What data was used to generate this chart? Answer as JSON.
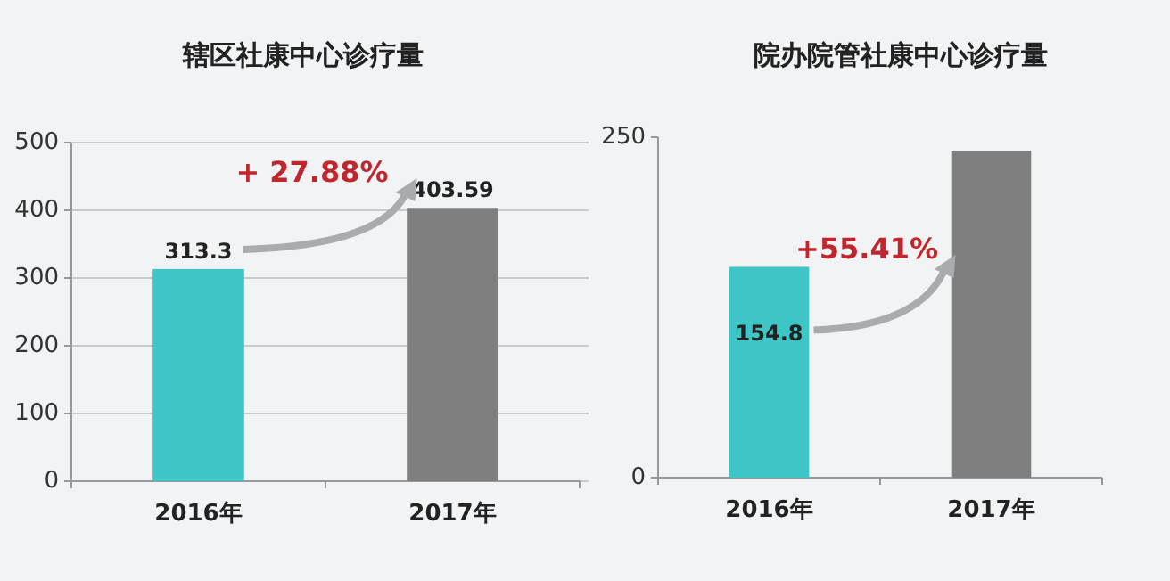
{
  "chart_data": [
    {
      "type": "bar",
      "title": "辖区社康中心诊疗量",
      "categories": [
        "2016年",
        "2017年"
      ],
      "values": [
        313.3,
        403.59
      ],
      "colors": [
        "#3ec6c6",
        "#7f7f7f"
      ],
      "ylim": [
        0,
        500
      ],
      "yticks": [
        0,
        100,
        200,
        300,
        400,
        500
      ],
      "grid": "y",
      "data_labels": true,
      "annotations": [
        "+ 27.88%"
      ]
    },
    {
      "type": "bar",
      "title": "院办院管社康中心诊疗量",
      "categories": [
        "2016年",
        "2017年"
      ],
      "values": [
        154.8,
        240
      ],
      "colors": [
        "#3ec6c6",
        "#7f7f7f"
      ],
      "ylim": [
        0,
        250
      ],
      "yticks": [
        0,
        250
      ],
      "value_labels": [
        "154.8",
        null
      ],
      "annotations": [
        {
          "text": "+55.41%",
          "x": "2016年",
          "y": 154.8
        }
      ]
    }
  ]
}
